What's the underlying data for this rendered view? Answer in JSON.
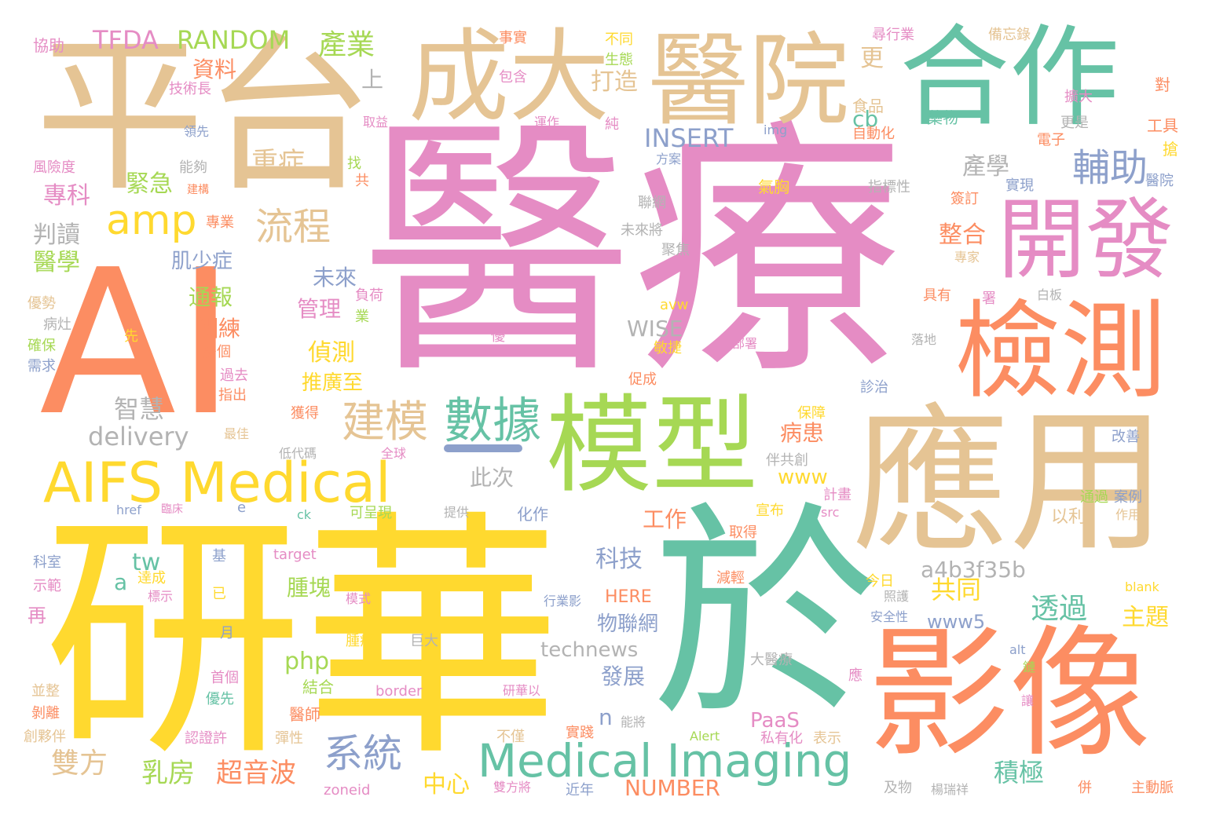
{
  "word_cloud": {
    "palette": {
      "pink": "#e58cc4",
      "orange": "#fc8d62",
      "tan": "#e5c494",
      "yellow": "#ffd92f",
      "green": "#a6d854",
      "teal": "#66c2a5",
      "blue": "#8da0cb",
      "gray": "#b3b3b3"
    },
    "words": [
      "醫療",
      "AI",
      "研華",
      "於",
      "平台",
      "應用",
      "模型",
      "影像",
      "合作",
      "成大",
      "醫院",
      "檢測",
      "開發",
      "AIFS Medical",
      "Medical Imaging",
      "數據",
      "amp",
      "流程",
      "輔助",
      "建模",
      "TFDA",
      "RANDOM",
      "產業",
      "資料",
      "上",
      "技術長",
      "協助",
      "事實",
      "包含",
      "不同",
      "生態",
      "食品",
      "藥物",
      "取益",
      "運作",
      "純",
      "更",
      "打造",
      "cb",
      "INSERT",
      "重症",
      "緊急",
      "專科",
      "判讀",
      "醫學",
      "肌少症",
      "通報",
      "未來",
      "產學",
      "整合",
      "img",
      "方案",
      "聯網",
      "未來將",
      "氣胸",
      "指標性",
      "備忘錄",
      "尋行業",
      "對",
      "擴大",
      "更是",
      "工具",
      "電子",
      "搶",
      "簽訂",
      "實現",
      "醫院",
      "自動化",
      "風險度",
      "能夠",
      "建構",
      "找",
      "共",
      "領先",
      "專業",
      "聚焦",
      "專家",
      "白板",
      "具有",
      "署",
      "落地",
      "診治",
      "敏捷",
      "部署",
      "促成",
      "WISE",
      "avw",
      "負荷",
      "業",
      "優",
      "先",
      "優勢",
      "病灶",
      "確保",
      "需求",
      "管理",
      "偵測",
      "推廣至",
      "訓練",
      "多個",
      "過去",
      "指出",
      "獲得",
      "智慧",
      "delivery",
      "最佳",
      "低代碼",
      "全球",
      "保障",
      "伴共創",
      "改善",
      "通過",
      "案例",
      "病患",
      "www",
      "此次",
      "計畫",
      "宣布",
      "取得",
      "以利",
      "作用",
      "可呈現",
      "提供",
      "化作",
      "工作",
      "href",
      "臨床",
      "e",
      "ck",
      "src",
      "科技",
      "a4b3f35b",
      "共同",
      "透過",
      "主題",
      "www5",
      "technews",
      "物聯網",
      "HERE",
      "今日",
      "照護",
      "安全性",
      "blank",
      "alt",
      "鏈",
      "應",
      "讓",
      "科室",
      "示範",
      "再",
      "並整",
      "剝離",
      "創夥伴",
      "基",
      "達成",
      "標示",
      "已",
      "模式",
      "行業影",
      "減輕",
      "大醫療",
      "巨大",
      "腫瘤",
      "月",
      "首個",
      "優先",
      "結合",
      "醫師",
      "border",
      "研華以",
      "target",
      "tw",
      "a",
      "腫塊",
      "php",
      "發展",
      "n",
      "系統",
      "雙方",
      "乳房",
      "超音波",
      "中心",
      "PaaS",
      "NUMBER",
      "Alert",
      "私有化",
      "表示",
      "積極",
      "認證許",
      "彈性",
      "不僅",
      "實踐",
      "能將",
      "雙方將",
      "近年",
      "zoneid",
      "及物",
      "楊瑞祥",
      "併",
      "主動脈"
    ]
  }
}
